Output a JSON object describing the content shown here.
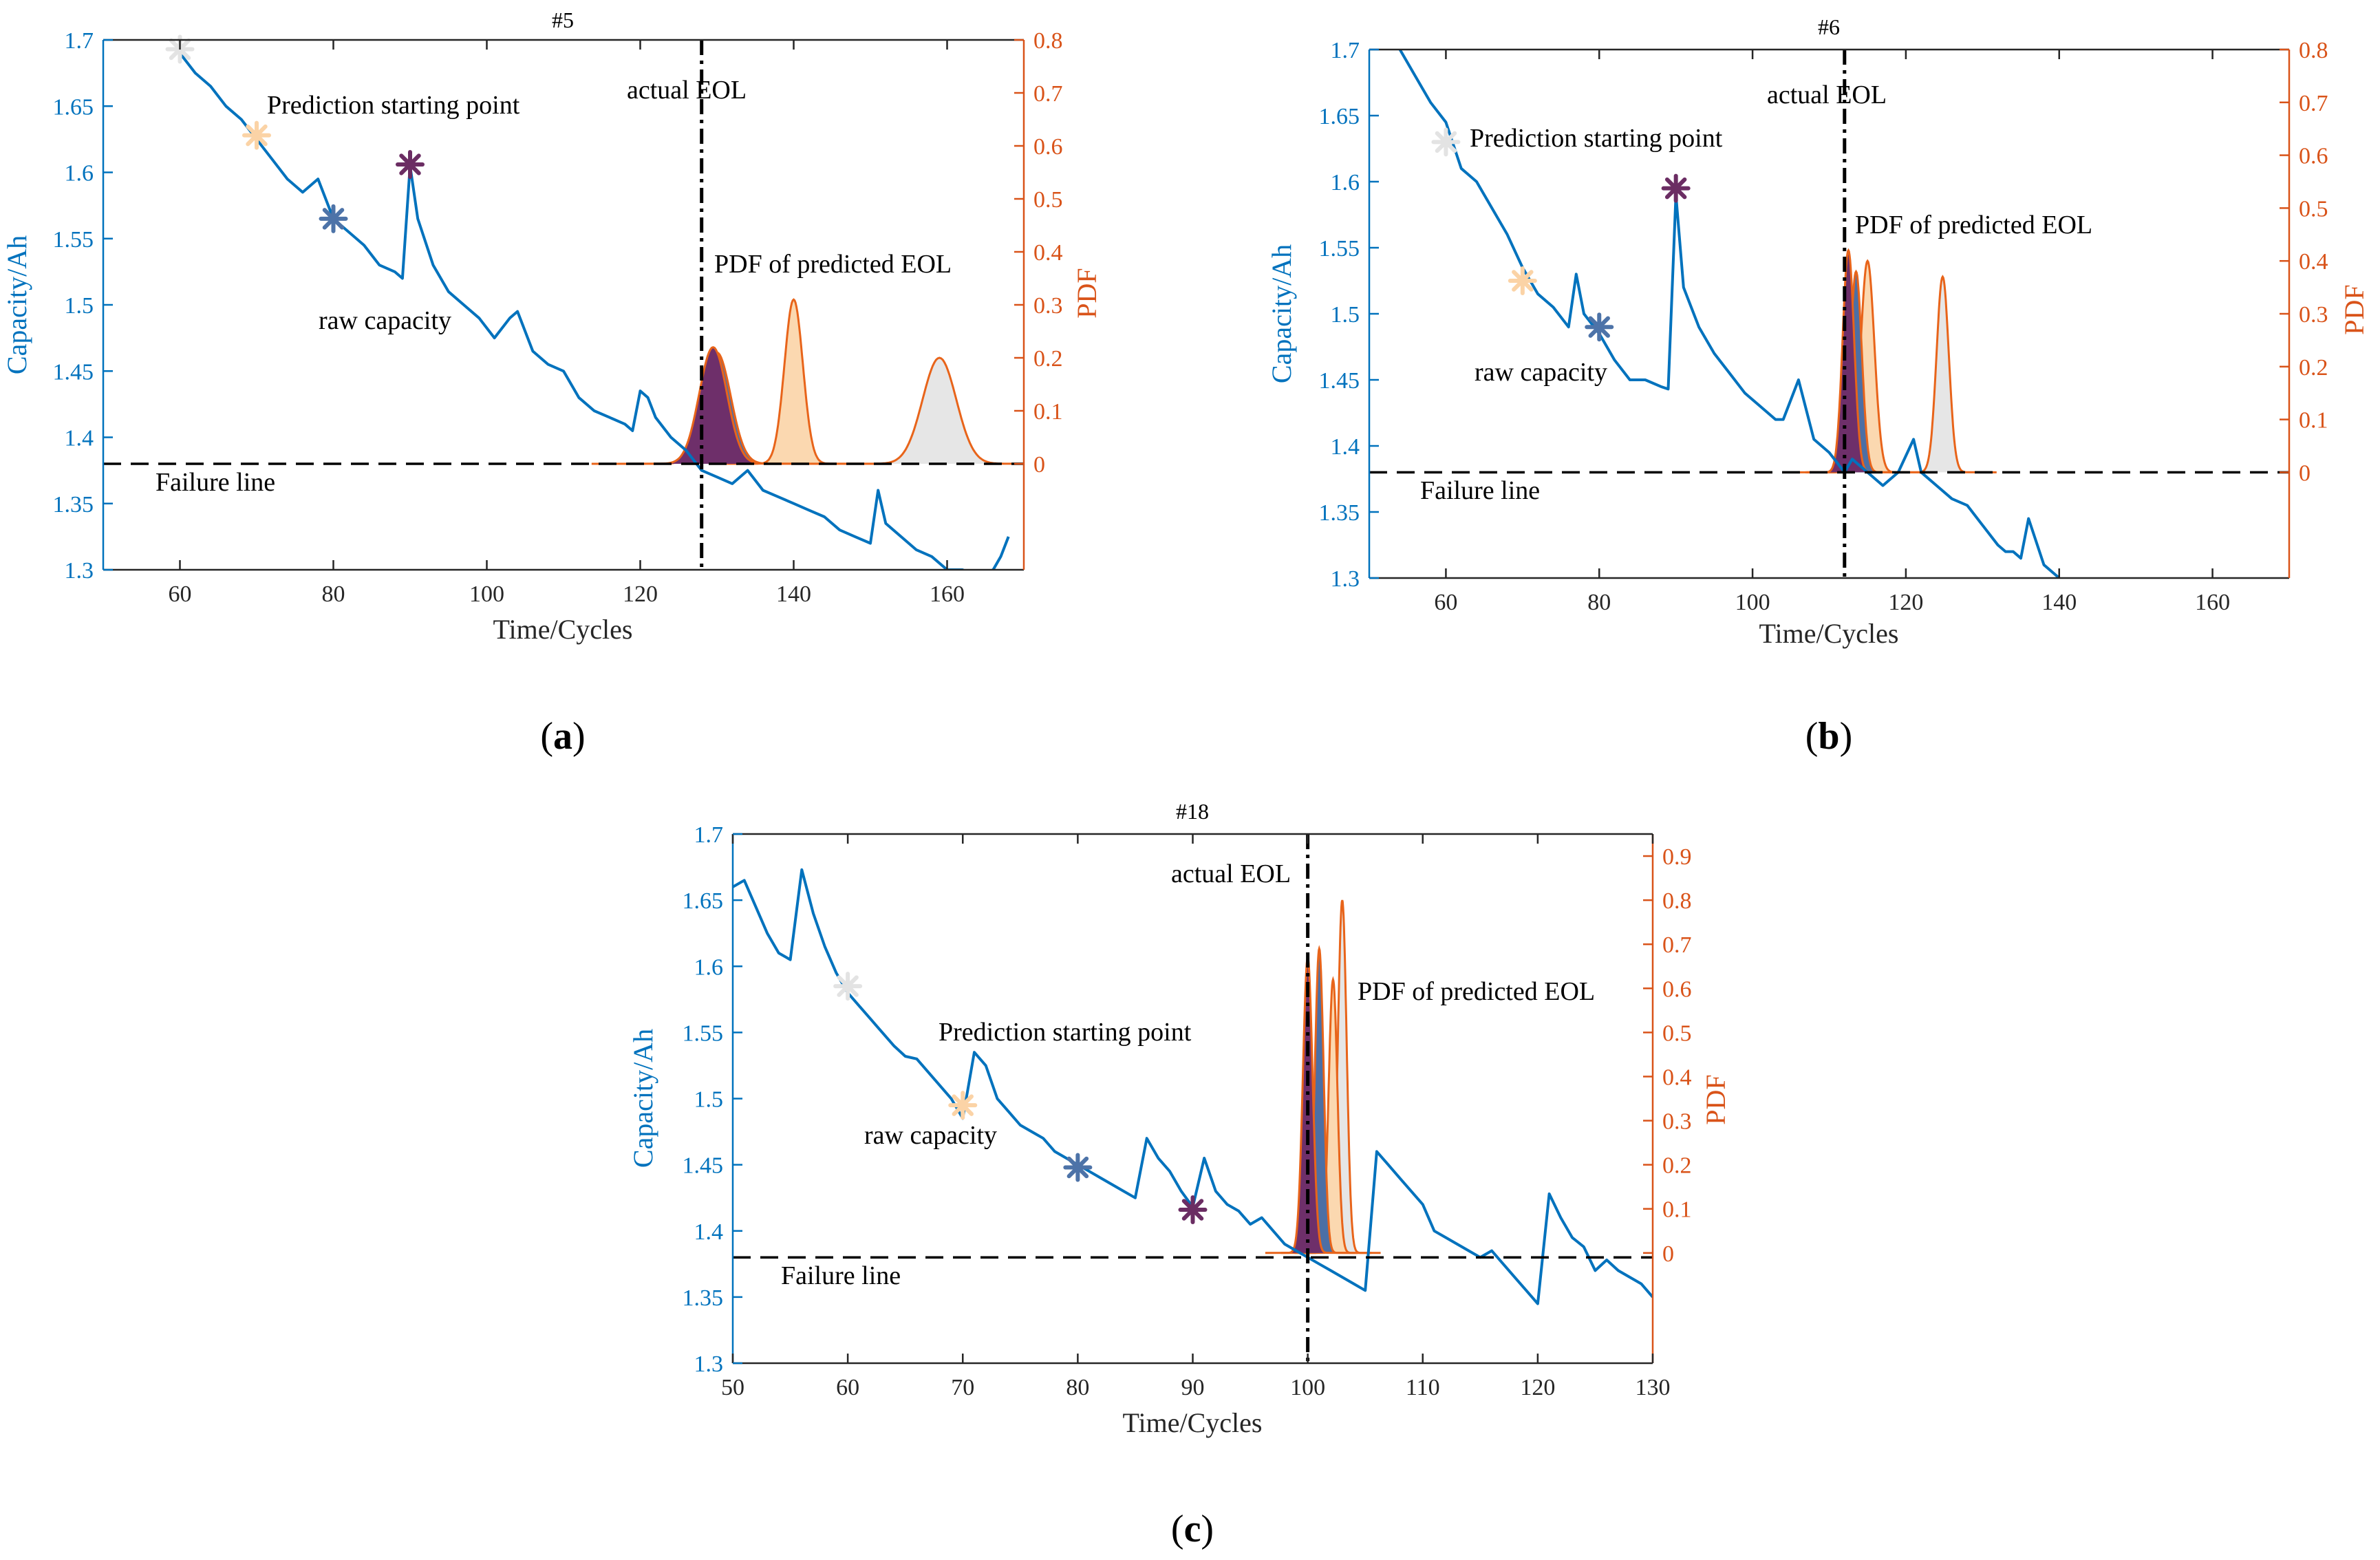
{
  "figure": {
    "colors": {
      "capacity": "#0072bd",
      "pdf_axis": "#d95319",
      "pdf_edge": "#e8641a",
      "fill_start60": "#e6e6e6",
      "fill_start70": "#fbd8b0",
      "fill_start80": "#4c6fa5",
      "fill_start90": "#6e2f6a",
      "star_start60": "#e3e3e3",
      "star_start70": "#fbd3a6",
      "star_start80": "#4d73a8",
      "star_start90": "#6b2d63"
    }
  },
  "chart_data": [
    {
      "type": "line",
      "panel_label": "(a)",
      "title": "#5",
      "xlabel": "Time/Cycles",
      "ylabel": "Capacity/Ah",
      "y2label": "PDF",
      "xlim": [
        50,
        170
      ],
      "ylim": [
        1.3,
        1.7
      ],
      "y2lim": [
        -0.2,
        0.8
      ],
      "xticks": [
        60,
        80,
        100,
        120,
        140,
        160
      ],
      "yticks": [
        1.3,
        1.35,
        1.4,
        1.45,
        1.5,
        1.55,
        1.6,
        1.65,
        1.7
      ],
      "y2ticks": [
        0,
        0.1,
        0.2,
        0.3,
        0.4,
        0.5,
        0.6,
        0.7,
        0.8
      ],
      "grid": false,
      "failure_threshold": 1.38,
      "actual_eol": 128,
      "annotations": {
        "prediction_start": "Prediction starting point",
        "actual_eol": "actual EOL",
        "pdf": "PDF of predicted EOL",
        "raw": "raw capacity",
        "failure": "Failure line"
      },
      "capacity": {
        "x": [
          60,
          62,
          64,
          66,
          68,
          70,
          72,
          74,
          76,
          78,
          80,
          82,
          84,
          86,
          88,
          89,
          90,
          91,
          93,
          95,
          97,
          99,
          101,
          103,
          104,
          106,
          108,
          110,
          112,
          114,
          116,
          118,
          119,
          120,
          121,
          122,
          124,
          126,
          128,
          130,
          132,
          134,
          136,
          138,
          140,
          142,
          144,
          146,
          148,
          150,
          151,
          152,
          154,
          156,
          158,
          160,
          162,
          164,
          166,
          167,
          168
        ],
        "y": [
          1.69,
          1.675,
          1.665,
          1.65,
          1.64,
          1.625,
          1.61,
          1.595,
          1.585,
          1.595,
          1.565,
          1.555,
          1.545,
          1.53,
          1.525,
          1.52,
          1.605,
          1.565,
          1.53,
          1.51,
          1.5,
          1.49,
          1.475,
          1.49,
          1.495,
          1.465,
          1.455,
          1.45,
          1.43,
          1.42,
          1.415,
          1.41,
          1.405,
          1.435,
          1.43,
          1.415,
          1.4,
          1.39,
          1.375,
          1.37,
          1.365,
          1.375,
          1.36,
          1.355,
          1.35,
          1.345,
          1.34,
          1.33,
          1.325,
          1.32,
          1.36,
          1.335,
          1.325,
          1.315,
          1.31,
          1.3,
          1.3,
          1.295,
          1.3,
          1.31,
          1.325
        ]
      },
      "start_markers": [
        {
          "cycle": 60,
          "capacity": 1.693,
          "color": "#e3e3e3"
        },
        {
          "cycle": 70,
          "capacity": 1.628,
          "color": "#fbd3a6"
        },
        {
          "cycle": 80,
          "capacity": 1.565,
          "color": "#4d73a8"
        },
        {
          "cycle": 90,
          "capacity": 1.606,
          "color": "#6b2d63"
        }
      ],
      "pdfs": [
        {
          "center": 159,
          "sigma": 2.2,
          "peak": 0.2,
          "fill": "#e6e6e6"
        },
        {
          "center": 140,
          "sigma": 1.2,
          "peak": 0.31,
          "fill": "#fbd8b0"
        },
        {
          "center": 130,
          "sigma": 1.8,
          "peak": 0.21,
          "fill": "#4c6fa5"
        },
        {
          "center": 129.5,
          "sigma": 1.8,
          "peak": 0.22,
          "fill": "#6e2f6a"
        }
      ]
    },
    {
      "type": "line",
      "panel_label": "(b)",
      "title": "#6",
      "xlabel": "Time/Cycles",
      "ylabel": "Capacity/Ah",
      "y2label": "PDF",
      "xlim": [
        50,
        170
      ],
      "ylim": [
        1.3,
        1.7
      ],
      "y2lim": [
        -0.2,
        0.8
      ],
      "xticks": [
        60,
        80,
        100,
        120,
        140,
        160
      ],
      "yticks": [
        1.3,
        1.35,
        1.4,
        1.45,
        1.5,
        1.55,
        1.6,
        1.65,
        1.7
      ],
      "y2ticks": [
        0,
        0.1,
        0.2,
        0.3,
        0.4,
        0.5,
        0.6,
        0.7,
        0.8
      ],
      "grid": false,
      "failure_threshold": 1.38,
      "actual_eol": 112,
      "annotations": {
        "prediction_start": "Prediction starting point",
        "actual_eol": "actual EOL",
        "pdf": "PDF of predicted EOL",
        "raw": "raw capacity",
        "failure": "Failure line"
      },
      "capacity": {
        "x": [
          54,
          56,
          58,
          60,
          62,
          64,
          66,
          68,
          70,
          72,
          74,
          76,
          77,
          78,
          80,
          82,
          84,
          86,
          88,
          89,
          90,
          91,
          93,
          95,
          97,
          99,
          101,
          103,
          104,
          106,
          108,
          110,
          112,
          113,
          115,
          117,
          119,
          121,
          122,
          124,
          126,
          128,
          130,
          132,
          133,
          134,
          135,
          136,
          138,
          140
        ],
        "y": [
          1.7,
          1.68,
          1.66,
          1.645,
          1.61,
          1.6,
          1.58,
          1.56,
          1.535,
          1.515,
          1.505,
          1.49,
          1.53,
          1.5,
          1.485,
          1.465,
          1.45,
          1.45,
          1.445,
          1.443,
          1.59,
          1.52,
          1.49,
          1.47,
          1.455,
          1.44,
          1.43,
          1.42,
          1.42,
          1.45,
          1.405,
          1.395,
          1.38,
          1.39,
          1.38,
          1.37,
          1.38,
          1.405,
          1.38,
          1.37,
          1.36,
          1.355,
          1.34,
          1.325,
          1.32,
          1.32,
          1.315,
          1.345,
          1.31,
          1.3
        ]
      },
      "start_markers": [
        {
          "cycle": 60,
          "capacity": 1.63,
          "color": "#e3e3e3"
        },
        {
          "cycle": 70,
          "capacity": 1.525,
          "color": "#fbd3a6"
        },
        {
          "cycle": 80,
          "capacity": 1.49,
          "color": "#4d73a8"
        },
        {
          "cycle": 90,
          "capacity": 1.595,
          "color": "#6b2d63"
        }
      ],
      "pdfs": [
        {
          "center": 124.8,
          "sigma": 0.8,
          "peak": 0.37,
          "fill": "#e6e6e6"
        },
        {
          "center": 115,
          "sigma": 0.9,
          "peak": 0.4,
          "fill": "#fbd8b0"
        },
        {
          "center": 113.5,
          "sigma": 0.75,
          "peak": 0.38,
          "fill": "#4c6fa5"
        },
        {
          "center": 112.5,
          "sigma": 0.75,
          "peak": 0.42,
          "fill": "#6e2f6a"
        }
      ]
    },
    {
      "type": "line",
      "panel_label": "(c)",
      "title": "#18",
      "xlabel": "Time/Cycles",
      "ylabel": "Capacity/Ah",
      "y2label": "PDF",
      "xlim": [
        50,
        130
      ],
      "ylim": [
        1.3,
        1.7
      ],
      "y2lim": [
        -0.25,
        0.95
      ],
      "xticks": [
        50,
        60,
        70,
        80,
        90,
        100,
        110,
        120,
        130
      ],
      "yticks": [
        1.3,
        1.35,
        1.4,
        1.45,
        1.5,
        1.55,
        1.6,
        1.65,
        1.7
      ],
      "y2ticks": [
        0,
        0.1,
        0.2,
        0.3,
        0.4,
        0.5,
        0.6,
        0.7,
        0.8,
        0.9
      ],
      "grid": false,
      "failure_threshold": 1.38,
      "actual_eol": 100,
      "annotations": {
        "prediction_start": "Prediction starting point",
        "actual_eol": "actual EOL",
        "pdf": "PDF of predicted EOL",
        "raw": "raw capacity",
        "failure": "Failure line"
      },
      "capacity": {
        "x": [
          50,
          51,
          52,
          53,
          54,
          55,
          56,
          57,
          58,
          59,
          60,
          61,
          62,
          63,
          64,
          65,
          66,
          67,
          68,
          69,
          70,
          71,
          72,
          73,
          74,
          75,
          76,
          77,
          78,
          79,
          80,
          81,
          82,
          83,
          84,
          85,
          86,
          87,
          88,
          89,
          90,
          91,
          92,
          93,
          94,
          95,
          96,
          97,
          98,
          99,
          100,
          101,
          102,
          103,
          104,
          105,
          106,
          107,
          108,
          109,
          110,
          111,
          112,
          113,
          114,
          115,
          116,
          117,
          118,
          119,
          120,
          121,
          122,
          123,
          124,
          125,
          126,
          127,
          128,
          129,
          130
        ],
        "y": [
          1.66,
          1.665,
          1.645,
          1.625,
          1.61,
          1.605,
          1.673,
          1.64,
          1.615,
          1.595,
          1.58,
          1.57,
          1.56,
          1.55,
          1.54,
          1.532,
          1.53,
          1.52,
          1.51,
          1.5,
          1.485,
          1.535,
          1.525,
          1.5,
          1.49,
          1.48,
          1.475,
          1.47,
          1.46,
          1.455,
          1.45,
          1.445,
          1.44,
          1.435,
          1.43,
          1.425,
          1.47,
          1.455,
          1.445,
          1.43,
          1.418,
          1.455,
          1.43,
          1.42,
          1.415,
          1.405,
          1.41,
          1.4,
          1.39,
          1.385,
          1.38,
          1.375,
          1.37,
          1.365,
          1.36,
          1.355,
          1.46,
          1.45,
          1.44,
          1.43,
          1.42,
          1.4,
          1.395,
          1.39,
          1.385,
          1.38,
          1.385,
          1.375,
          1.365,
          1.355,
          1.345,
          1.428,
          1.41,
          1.395,
          1.388,
          1.37,
          1.378,
          1.37,
          1.365,
          1.36,
          1.35
        ]
      },
      "start_markers": [
        {
          "cycle": 60,
          "capacity": 1.585,
          "color": "#e3e3e3"
        },
        {
          "cycle": 70,
          "capacity": 1.495,
          "color": "#fbd3a6"
        },
        {
          "cycle": 80,
          "capacity": 1.448,
          "color": "#4d73a8"
        },
        {
          "cycle": 90,
          "capacity": 1.416,
          "color": "#6b2d63"
        }
      ],
      "pdfs": [
        {
          "center": 103,
          "sigma": 0.38,
          "peak": 0.8,
          "fill": "#e6e6e6"
        },
        {
          "center": 102.2,
          "sigma": 0.38,
          "peak": 0.62,
          "fill": "#fbd8b0"
        },
        {
          "center": 101,
          "sigma": 0.38,
          "peak": 0.69,
          "fill": "#4c6fa5"
        },
        {
          "center": 100,
          "sigma": 0.42,
          "peak": 0.67,
          "fill": "#6e2f6a"
        }
      ]
    }
  ]
}
